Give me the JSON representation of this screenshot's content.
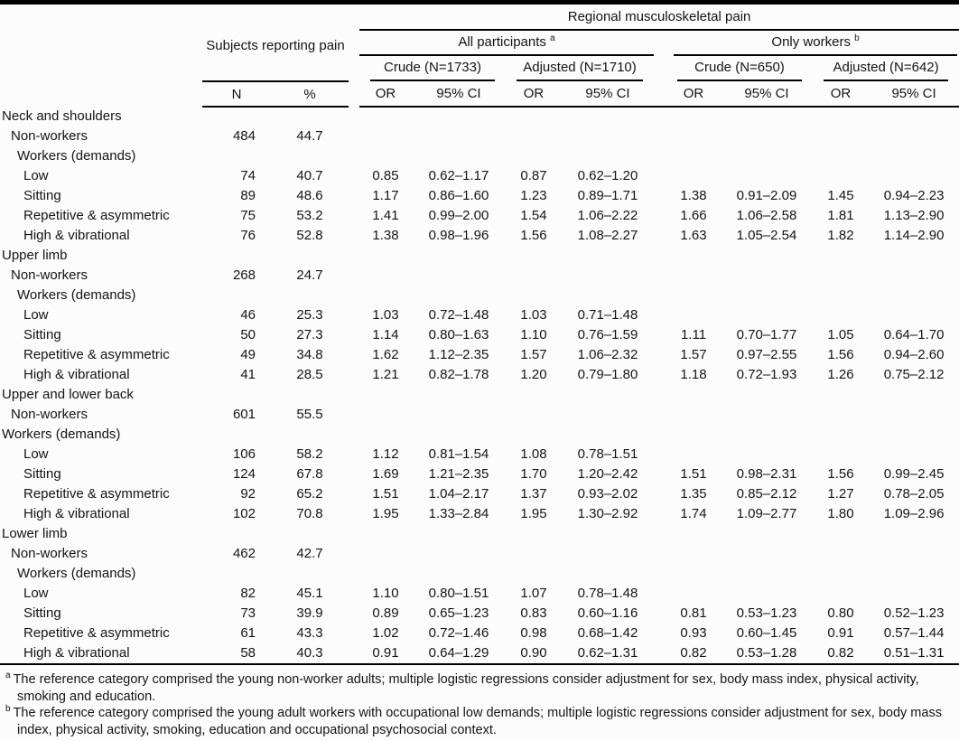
{
  "colors": {
    "rule": "#000000",
    "text": "#141414",
    "background": "#fcfcfc"
  },
  "table": {
    "header": {
      "subjects_group": "Subjects reporting pain",
      "regional_group": "Regional musculoskeletal pain",
      "all_participants_label": "All participants",
      "all_participants_sup": "a",
      "only_workers_label": "Only workers",
      "only_workers_sup": "b",
      "model_cols": [
        "Crude (N=1733)",
        "Adjusted (N=1710)",
        "Crude (N=650)",
        "Adjusted (N=642)"
      ],
      "stat_cols": {
        "n": "N",
        "pct": "%",
        "or": "OR",
        "ci": "95% CI"
      }
    },
    "sections": [
      {
        "title": "Neck and shoulders",
        "rows": [
          {
            "label": "Non-workers",
            "indent": 1,
            "n": "484",
            "pct": "44.7",
            "cells": [
              "",
              "",
              "",
              "",
              "",
              "",
              "",
              ""
            ]
          },
          {
            "label": "Workers (demands)",
            "indent": 2,
            "n": "",
            "pct": "",
            "cells": [
              "",
              "",
              "",
              "",
              "",
              "",
              "",
              ""
            ]
          },
          {
            "label": "Low",
            "indent": 3,
            "n": "74",
            "pct": "40.7",
            "cells": [
              "0.85",
              "0.62–1.17",
              "0.87",
              "0.62–1.20",
              "",
              "",
              "",
              ""
            ]
          },
          {
            "label": "Sitting",
            "indent": 3,
            "n": "89",
            "pct": "48.6",
            "cells": [
              "1.17",
              "0.86–1.60",
              "1.23",
              "0.89–1.71",
              "1.38",
              "0.91–2.09",
              "1.45",
              "0.94–2.23"
            ]
          },
          {
            "label": "Repetitive & asymmetric",
            "indent": 3,
            "n": "75",
            "pct": "53.2",
            "cells": [
              "1.41",
              "0.99–2.00",
              "1.54",
              "1.06–2.22",
              "1.66",
              "1.06–2.58",
              "1.81",
              "1.13–2.90"
            ]
          },
          {
            "label": "High & vibrational",
            "indent": 3,
            "n": "76",
            "pct": "52.8",
            "cells": [
              "1.38",
              "0.98–1.96",
              "1.56",
              "1.08–2.27",
              "1.63",
              "1.05–2.54",
              "1.82",
              "1.14–2.90"
            ]
          }
        ]
      },
      {
        "title": "Upper limb",
        "rows": [
          {
            "label": "Non-workers",
            "indent": 1,
            "n": "268",
            "pct": "24.7",
            "cells": [
              "",
              "",
              "",
              "",
              "",
              "",
              "",
              ""
            ]
          },
          {
            "label": "Workers (demands)",
            "indent": 2,
            "n": "",
            "pct": "",
            "cells": [
              "",
              "",
              "",
              "",
              "",
              "",
              "",
              ""
            ]
          },
          {
            "label": "Low",
            "indent": 3,
            "n": "46",
            "pct": "25.3",
            "cells": [
              "1.03",
              "0.72–1.48",
              "1.03",
              "0.71–1.48",
              "",
              "",
              "",
              ""
            ]
          },
          {
            "label": "Sitting",
            "indent": 3,
            "n": "50",
            "pct": "27.3",
            "cells": [
              "1.14",
              "0.80–1.63",
              "1.10",
              "0.76–1.59",
              "1.11",
              "0.70–1.77",
              "1.05",
              "0.64–1.70"
            ]
          },
          {
            "label": "Repetitive & asymmetric",
            "indent": 3,
            "n": "49",
            "pct": "34.8",
            "cells": [
              "1.62",
              "1.12–2.35",
              "1.57",
              "1.06–2.32",
              "1.57",
              "0.97–2.55",
              "1.56",
              "0.94–2.60"
            ]
          },
          {
            "label": "High & vibrational",
            "indent": 3,
            "n": "41",
            "pct": "28.5",
            "cells": [
              "1.21",
              "0.82–1.78",
              "1.20",
              "0.79–1.80",
              "1.18",
              "0.72–1.93",
              "1.26",
              "0.75–2.12"
            ]
          }
        ]
      },
      {
        "title": "Upper and lower back",
        "rows": [
          {
            "label": "Non-workers",
            "indent": 1,
            "n": "601",
            "pct": "55.5",
            "cells": [
              "",
              "",
              "",
              "",
              "",
              "",
              "",
              ""
            ]
          },
          {
            "label": "Workers (demands)",
            "indent": 0,
            "n": "",
            "pct": "",
            "cells": [
              "",
              "",
              "",
              "",
              "",
              "",
              "",
              ""
            ]
          },
          {
            "label": "Low",
            "indent": 3,
            "n": "106",
            "pct": "58.2",
            "cells": [
              "1.12",
              "0.81–1.54",
              "1.08",
              "0.78–1.51",
              "",
              "",
              "",
              ""
            ]
          },
          {
            "label": "Sitting",
            "indent": 3,
            "n": "124",
            "pct": "67.8",
            "cells": [
              "1.69",
              "1.21–2.35",
              "1.70",
              "1.20–2.42",
              "1.51",
              "0.98–2.31",
              "1.56",
              "0.99–2.45"
            ]
          },
          {
            "label": "Repetitive & asymmetric",
            "indent": 3,
            "n": "92",
            "pct": "65.2",
            "cells": [
              "1.51",
              "1.04–2.17",
              "1.37",
              "0.93–2.02",
              "1.35",
              "0.85–2.12",
              "1.27",
              "0.78–2.05"
            ]
          },
          {
            "label": "High & vibrational",
            "indent": 3,
            "n": "102",
            "pct": "70.8",
            "cells": [
              "1.95",
              "1.33–2.84",
              "1.95",
              "1.30–2.92",
              "1.74",
              "1.09–2.77",
              "1.80",
              "1.09–2.96"
            ]
          }
        ]
      },
      {
        "title": "Lower limb",
        "rows": [
          {
            "label": "Non-workers",
            "indent": 1,
            "n": "462",
            "pct": "42.7",
            "cells": [
              "",
              "",
              "",
              "",
              "",
              "",
              "",
              ""
            ]
          },
          {
            "label": "Workers (demands)",
            "indent": 2,
            "n": "",
            "pct": "",
            "cells": [
              "",
              "",
              "",
              "",
              "",
              "",
              "",
              ""
            ]
          },
          {
            "label": "Low",
            "indent": 3,
            "n": "82",
            "pct": "45.1",
            "cells": [
              "1.10",
              "0.80–1.51",
              "1.07",
              "0.78–1.48",
              "",
              "",
              "",
              ""
            ]
          },
          {
            "label": "Sitting",
            "indent": 3,
            "n": "73",
            "pct": "39.9",
            "cells": [
              "0.89",
              "0.65–1.23",
              "0.83",
              "0.60–1.16",
              "0.81",
              "0.53–1.23",
              "0.80",
              "0.52–1.23"
            ]
          },
          {
            "label": "Repetitive & asymmetric",
            "indent": 3,
            "n": "61",
            "pct": "43.3",
            "cells": [
              "1.02",
              "0.72–1.46",
              "0.98",
              "0.68–1.42",
              "0.93",
              "0.60–1.45",
              "0.91",
              "0.57–1.44"
            ]
          },
          {
            "label": "High & vibrational",
            "indent": 3,
            "n": "58",
            "pct": "40.3",
            "cells": [
              "0.91",
              "0.64–1.29",
              "0.90",
              "0.62–1.31",
              "0.82",
              "0.53–1.28",
              "0.82",
              "0.51–1.31"
            ]
          }
        ]
      }
    ],
    "footnotes": [
      {
        "sup": "a",
        "text": "The reference category comprised the young non-worker adults; multiple logistic regressions consider adjustment for sex, body mass index, physical activity, smoking and education."
      },
      {
        "sup": "b",
        "text": "The reference category comprised the young adult workers with occupational low demands; multiple logistic regressions consider adjustment for sex, body mass index, physical activity, smoking, education and occupational psychosocial context."
      }
    ]
  }
}
